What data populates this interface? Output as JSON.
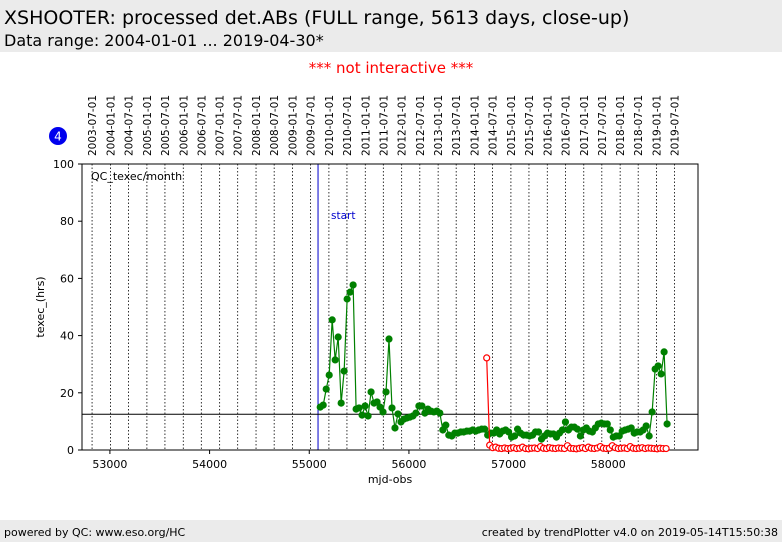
{
  "header": {
    "title": "XSHOOTER: processed det.ABs (FULL range, 5613 days, close-up)",
    "subtitle": "Data range: 2004-01-01 ... 2019-04-30*"
  },
  "notice": "*** not interactive ***",
  "badge": "4",
  "footer": {
    "left": "powered by QC: www.eso.org/HC",
    "right": "created by trendPlotter v4.0 on 2019-05-14T15:50:38"
  },
  "chart_data": {
    "type": "line",
    "annotation": "QC_texec/month",
    "x_label": "mjd-obs",
    "y_label": "texec_(hrs)",
    "xlim": [
      52720,
      58900
    ],
    "ylim": [
      0,
      100
    ],
    "xticks": [
      53000,
      54000,
      55000,
      56000,
      57000,
      58000
    ],
    "yticks": [
      0,
      20,
      40,
      60,
      80,
      100
    ],
    "top_ticks": [
      {
        "value": 52821,
        "label": "2003-07-01"
      },
      {
        "value": 53005,
        "label": "2004-01-01"
      },
      {
        "value": 53187,
        "label": "2004-07-01"
      },
      {
        "value": 53371,
        "label": "2005-01-01"
      },
      {
        "value": 53552,
        "label": "2005-07-01"
      },
      {
        "value": 53736,
        "label": "2006-01-01"
      },
      {
        "value": 53917,
        "label": "2006-07-01"
      },
      {
        "value": 54101,
        "label": "2007-01-01"
      },
      {
        "value": 54282,
        "label": "2007-07-01"
      },
      {
        "value": 54466,
        "label": "2008-01-01"
      },
      {
        "value": 54648,
        "label": "2008-07-01"
      },
      {
        "value": 54832,
        "label": "2009-01-01"
      },
      {
        "value": 55013,
        "label": "2009-07-01"
      },
      {
        "value": 55197,
        "label": "2010-01-01"
      },
      {
        "value": 55378,
        "label": "2010-07-01"
      },
      {
        "value": 55562,
        "label": "2011-01-01"
      },
      {
        "value": 55743,
        "label": "2011-07-01"
      },
      {
        "value": 55927,
        "label": "2012-01-01"
      },
      {
        "value": 56109,
        "label": "2012-07-01"
      },
      {
        "value": 56293,
        "label": "2013-01-01"
      },
      {
        "value": 56474,
        "label": "2013-07-01"
      },
      {
        "value": 56658,
        "label": "2014-01-01"
      },
      {
        "value": 56839,
        "label": "2014-07-01"
      },
      {
        "value": 57023,
        "label": "2015-01-01"
      },
      {
        "value": 57204,
        "label": "2015-07-01"
      },
      {
        "value": 57388,
        "label": "2016-01-01"
      },
      {
        "value": 57570,
        "label": "2016-07-01"
      },
      {
        "value": 57754,
        "label": "2017-01-01"
      },
      {
        "value": 57935,
        "label": "2017-07-01"
      },
      {
        "value": 58119,
        "label": "2018-01-01"
      },
      {
        "value": 58300,
        "label": "2018-07-01"
      },
      {
        "value": 58484,
        "label": "2019-01-01"
      },
      {
        "value": 58665,
        "label": "2019-07-01"
      }
    ],
    "start_line": {
      "value": 55088,
      "label": "start",
      "color": "#0000cc"
    },
    "reference_line": 12.5,
    "series": [
      {
        "color": "#008000",
        "marker": "filled",
        "x": [
          55110,
          55140,
          55170,
          55200,
          55230,
          55260,
          55290,
          55320,
          55350,
          55380,
          55410,
          55440,
          55470,
          55500,
          55530,
          55560,
          55590,
          55620,
          55650,
          55680,
          55710,
          55740,
          55770,
          55800,
          55830,
          55860,
          55890,
          55920,
          55950,
          55980,
          56010,
          56040,
          56070,
          56100,
          56130,
          56160,
          56190,
          56220,
          56250,
          56280,
          56310,
          56340,
          56370,
          56400,
          56430,
          56460,
          56490,
          56520,
          56550,
          56580,
          56610,
          56640,
          56670,
          56700,
          56730,
          56760,
          56790,
          56820,
          56850,
          56880,
          56910,
          56940,
          56970,
          57000,
          57030,
          57060,
          57090,
          57120,
          57150,
          57180,
          57210,
          57240,
          57270,
          57300,
          57330,
          57360,
          57390,
          57420,
          57450,
          57480,
          57510,
          57540,
          57570,
          57600,
          57630,
          57660,
          57690,
          57720,
          57750,
          57780,
          57810,
          57840,
          57870,
          57900,
          57930,
          57960,
          57990,
          58020,
          58050,
          58080,
          58110,
          58140,
          58170,
          58200,
          58230,
          58260,
          58290,
          58320,
          58350,
          58380,
          58410,
          58440,
          58470,
          58500,
          58530,
          58560,
          58590
        ],
        "values": [
          15.0,
          15.7,
          21.3,
          26.2,
          45.5,
          31.5,
          39.5,
          16.4,
          27.6,
          52.8,
          55.2,
          57.7,
          14.3,
          14.7,
          12.2,
          15.4,
          11.9,
          20.3,
          16.4,
          16.8,
          15.0,
          13.3,
          20.3,
          38.8,
          14.7,
          7.7,
          12.6,
          9.8,
          10.8,
          11.2,
          11.5,
          11.9,
          12.9,
          15.4,
          15.4,
          12.9,
          14.3,
          13.6,
          13.3,
          13.6,
          12.9,
          7.0,
          8.7,
          5.2,
          4.9,
          5.9,
          5.9,
          6.3,
          6.3,
          6.6,
          6.6,
          7.0,
          6.6,
          7.0,
          7.3,
          7.3,
          5.2,
          5.9,
          5.9,
          7.0,
          5.6,
          6.6,
          7.0,
          6.3,
          4.5,
          4.9,
          7.3,
          5.9,
          5.2,
          5.2,
          4.9,
          5.2,
          6.3,
          6.3,
          3.8,
          4.9,
          5.9,
          5.6,
          5.6,
          4.5,
          5.9,
          7.0,
          9.8,
          7.0,
          8.0,
          8.0,
          7.3,
          4.9,
          7.0,
          7.7,
          6.6,
          6.3,
          7.7,
          9.1,
          9.4,
          9.1,
          9.1,
          7.0,
          4.5,
          4.9,
          4.9,
          6.6,
          7.0,
          7.3,
          7.7,
          5.9,
          6.3,
          6.3,
          7.0,
          8.4,
          4.9,
          13.3,
          28.3,
          29.4,
          26.6,
          34.3,
          9.1
        ]
      },
      {
        "color": "#ff0000",
        "marker": "open",
        "x": [
          56780,
          56810,
          56840,
          56870,
          56900,
          56930,
          56960,
          56990,
          57020,
          57050,
          57080,
          57110,
          57140,
          57170,
          57200,
          57230,
          57260,
          57290,
          57320,
          57350,
          57380,
          57410,
          57440,
          57470,
          57500,
          57530,
          57560,
          57590,
          57620,
          57650,
          57680,
          57710,
          57740,
          57770,
          57800,
          57830,
          57860,
          57890,
          57920,
          57950,
          57980,
          58010,
          58040,
          58070,
          58100,
          58130,
          58160,
          58190,
          58220,
          58250,
          58280,
          58310,
          58340,
          58370,
          58400,
          58430,
          58460,
          58490,
          58520,
          58550,
          58580
        ],
        "values": [
          32.2,
          1.7,
          0.8,
          1.0,
          0.6,
          0.5,
          0.7,
          0.5,
          0.6,
          0.8,
          0.5,
          0.6,
          1.0,
          0.5,
          0.4,
          0.6,
          0.7,
          0.5,
          1.2,
          0.6,
          0.5,
          0.8,
          0.6,
          0.5,
          0.7,
          0.6,
          0.5,
          1.5,
          0.6,
          0.5,
          0.4,
          0.6,
          0.8,
          0.5,
          1.0,
          0.6,
          0.5,
          0.7,
          1.2,
          0.6,
          0.5,
          0.6,
          1.5,
          0.8,
          0.5,
          0.6,
          0.7,
          0.5,
          1.2,
          0.6,
          0.5,
          0.6,
          0.8,
          0.5,
          0.7,
          0.6,
          0.5,
          0.4,
          0.6,
          0.5,
          0.5
        ]
      }
    ]
  }
}
